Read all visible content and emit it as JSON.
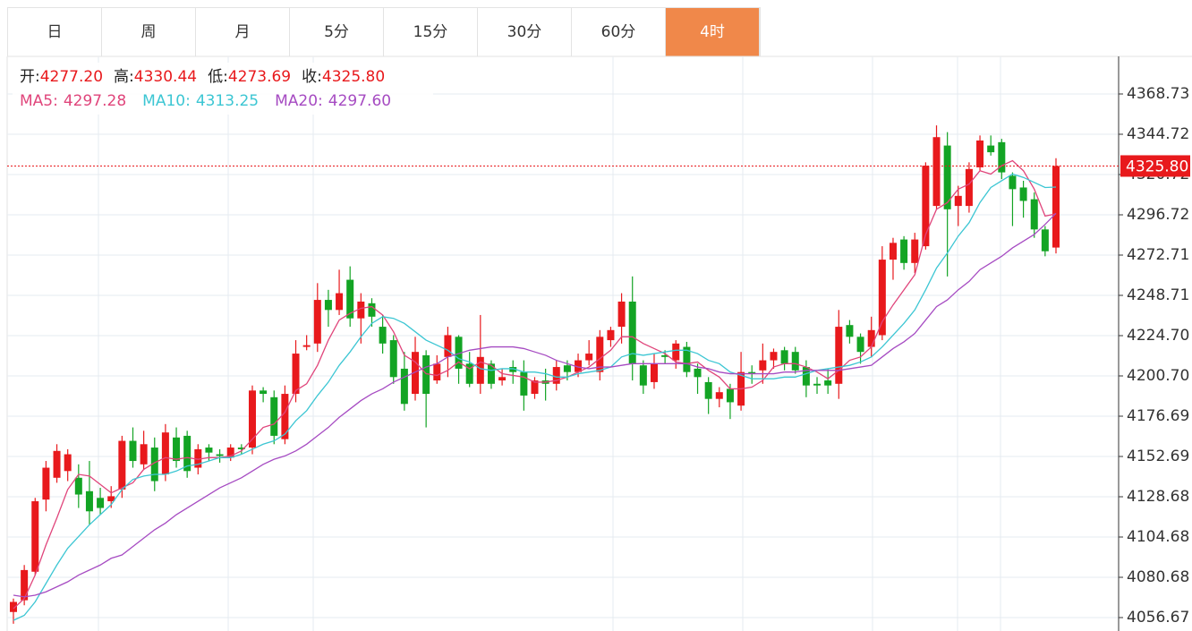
{
  "tabs": [
    "日",
    "周",
    "月",
    "5分",
    "15分",
    "30分",
    "60分",
    "4时"
  ],
  "active_tab": 7,
  "chart_data": {
    "type": "candlestick",
    "info": [
      {
        "label": "开:",
        "value": "4277.20"
      },
      {
        "label": "高:",
        "value": "4330.44"
      },
      {
        "label": "低:",
        "value": "4273.69"
      },
      {
        "label": "收:",
        "value": "4325.80"
      }
    ],
    "price_line": {
      "value": 4325.8,
      "label": "4325.80"
    },
    "up_color": "#e8191c",
    "down_color": "#13a424",
    "ylim": [
      4048.67,
      4391.13
    ],
    "yticks": [
      {
        "value": 4056.67,
        "label": "4056.67"
      },
      {
        "value": 4080.68,
        "label": "4080.68"
      },
      {
        "value": 4104.68,
        "label": "4104.68"
      },
      {
        "value": 4128.68,
        "label": "4128.68"
      },
      {
        "value": 4152.69,
        "label": "4152.69"
      },
      {
        "value": 4176.69,
        "label": "4176.69"
      },
      {
        "value": 4200.7,
        "label": "4200.70"
      },
      {
        "value": 4224.7,
        "label": "4224.70"
      },
      {
        "value": 4248.71,
        "label": "4248.71"
      },
      {
        "value": 4272.71,
        "label": "4272.71"
      },
      {
        "value": 4296.72,
        "label": "4296.72"
      },
      {
        "value": 4320.72,
        "label": "4320.72"
      },
      {
        "value": 4344.72,
        "label": "4344.72"
      },
      {
        "value": 4368.73,
        "label": "4368.73"
      }
    ],
    "grid": true,
    "open": [
      4060,
      4067,
      4084,
      4127,
      4140,
      4144,
      4140,
      4132,
      4128,
      4126,
      4133,
      4162,
      4148,
      4158,
      4142,
      4164,
      4165,
      4146,
      4158,
      4154,
      4152,
      4158,
      4158,
      4192,
      4188,
      4163,
      4190,
      4218,
      4220,
      4246,
      4240,
      4258,
      4235,
      4244,
      4230,
      4222,
      4205,
      4190,
      4213,
      4198,
      4212,
      4224,
      4208,
      4196,
      4208,
      4198,
      4206,
      4203,
      4190,
      4198,
      4196,
      4207,
      4203,
      4210,
      4203,
      4222,
      4230,
      4245,
      4207,
      4197,
      4213,
      4210,
      4218,
      4205,
      4197,
      4187,
      4193,
      4183,
      4203,
      4204,
      4210,
      4216,
      4215,
      4206,
      4196,
      4198,
      4196,
      4231,
      4224,
      4218,
      4225,
      4270,
      4282,
      4268,
      4278,
      4302,
      4338,
      4302,
      4302,
      4325,
      4338,
      4340,
      4320,
      4313,
      4306,
      4288,
      4277.2
    ],
    "high": [
      4068,
      4088,
      4128,
      4150,
      4160,
      4157,
      4148,
      4150,
      4134,
      4135,
      4165,
      4170,
      4168,
      4164,
      4172,
      4170,
      4168,
      4160,
      4160,
      4157,
      4160,
      4160,
      4195,
      4194,
      4192,
      4195,
      4222,
      4225,
      4256,
      4252,
      4264,
      4266,
      4250,
      4247,
      4237,
      4225,
      4215,
      4224,
      4216,
      4213,
      4230,
      4225,
      4215,
      4237,
      4210,
      4205,
      4210,
      4210,
      4200,
      4205,
      4210,
      4210,
      4214,
      4222,
      4228,
      4230,
      4250,
      4260,
      4210,
      4214,
      4216,
      4222,
      4221,
      4208,
      4200,
      4194,
      4196,
      4215,
      4207,
      4220,
      4217,
      4218,
      4218,
      4210,
      4200,
      4205,
      4240,
      4234,
      4226,
      4236,
      4278,
      4283,
      4284,
      4286,
      4328,
      4350,
      4346,
      4314,
      4328,
      4344,
      4344,
      4342,
      4322,
      4317,
      4310,
      4290,
      4330.44
    ],
    "low": [
      4053,
      4064,
      4082,
      4120,
      4137,
      4138,
      4122,
      4112,
      4118,
      4122,
      4128,
      4146,
      4145,
      4132,
      4138,
      4146,
      4140,
      4142,
      4150,
      4149,
      4150,
      4154,
      4154,
      4185,
      4160,
      4160,
      4185,
      4216,
      4215,
      4230,
      4237,
      4230,
      4220,
      4230,
      4214,
      4196,
      4180,
      4186,
      4170,
      4196,
      4200,
      4196,
      4194,
      4190,
      4193,
      4195,
      4196,
      4180,
      4187,
      4186,
      4192,
      4198,
      4200,
      4207,
      4198,
      4218,
      4220,
      4198,
      4190,
      4193,
      4208,
      4205,
      4200,
      4190,
      4178,
      4182,
      4175,
      4180,
      4196,
      4196,
      4205,
      4204,
      4202,
      4188,
      4190,
      4190,
      4187,
      4220,
      4208,
      4212,
      4222,
      4258,
      4264,
      4262,
      4276,
      4300,
      4260,
      4290,
      4298,
      4323,
      4332,
      4318,
      4290,
      4295,
      4283,
      4272,
      4273.69
    ],
    "close": [
      4066,
      4085,
      4126,
      4146,
      4156,
      4154,
      4130,
      4120,
      4122,
      4129,
      4162,
      4150,
      4160,
      4138,
      4167,
      4150,
      4144,
      4157,
      4155,
      4153,
      4158,
      4157,
      4192,
      4190,
      4165,
      4190,
      4214,
      4219,
      4246,
      4240,
      4250,
      4235,
      4245,
      4236,
      4220,
      4200,
      4184,
      4215,
      4190,
      4208,
      4225,
      4205,
      4196,
      4212,
      4196,
      4200,
      4203,
      4189,
      4198,
      4196,
      4206,
      4203,
      4210,
      4214,
      4224,
      4228,
      4245,
      4208,
      4195,
      4208,
      4212,
      4220,
      4203,
      4200,
      4187,
      4191,
      4185,
      4203,
      4202,
      4210,
      4215,
      4208,
      4204,
      4195,
      4195,
      4195,
      4230,
      4224,
      4215,
      4228,
      4270,
      4280,
      4268,
      4282,
      4326,
      4343,
      4300,
      4308,
      4324,
      4341,
      4334,
      4322,
      4312,
      4305,
      4288,
      4275,
      4325.8
    ],
    "series": [
      {
        "name": "MA5:",
        "value_label": "4297.28",
        "color": "#e0457b",
        "values": [
          4062,
          4068,
          4082,
          4100,
          4116,
          4133,
          4142,
          4141,
          4136,
          4131,
          4134,
          4137,
          4145,
          4149,
          4152,
          4151,
          4152,
          4151,
          4152,
          4152,
          4153,
          4156,
          4163,
          4170,
          4172,
          4179,
          4192,
          4196,
          4207,
          4222,
          4234,
          4238,
          4241,
          4242,
          4237,
          4227,
          4213,
          4209,
          4202,
          4201,
          4204,
          4209,
          4205,
          4209,
          4207,
          4202,
          4201,
          4200,
          4197,
          4197,
          4198,
          4200,
          4203,
          4206,
          4211,
          4216,
          4224,
          4224,
          4220,
          4217,
          4214,
          4209,
          4208,
          4209,
          4204,
          4200,
          4193,
          4193,
          4194,
          4198,
          4206,
          4208,
          4208,
          4206,
          4203,
          4199,
          4204,
          4210,
          4212,
          4218,
          4233,
          4243,
          4252,
          4261,
          4285,
          4300,
          4304,
          4312,
          4315,
          4323,
          4321,
          4326,
          4329,
          4323,
          4312,
          4296,
          4297.28
        ]
      },
      {
        "name": "MA10:",
        "value_label": "4313.25",
        "color": "#3cc6d3",
        "values": [
          4055,
          4058,
          4066,
          4077,
          4088,
          4098,
          4105,
          4112,
          4118,
          4124,
          4133,
          4139,
          4141,
          4142,
          4142,
          4144,
          4147,
          4148,
          4150,
          4152,
          4152,
          4154,
          4157,
          4160,
          4162,
          4166,
          4174,
          4180,
          4189,
          4197,
          4207,
          4215,
          4224,
          4232,
          4236,
          4235,
          4232,
          4227,
          4222,
          4219,
          4216,
          4211,
          4209,
          4205,
          4204,
          4205,
          4205,
          4203,
          4203,
          4202,
          4200,
          4200,
          4202,
          4203,
          4204,
          4206,
          4212,
          4214,
          4213,
          4214,
          4215,
          4216,
          4216,
          4214,
          4210,
          4208,
          4203,
          4201,
          4199,
          4199,
          4199,
          4200,
          4200,
          4202,
          4204,
          4205,
          4206,
          4207,
          4209,
          4212,
          4218,
          4225,
          4232,
          4240,
          4252,
          4265,
          4274,
          4284,
          4292,
          4304,
          4313,
          4317,
          4321,
          4319,
          4316,
          4313,
          4313.25
        ]
      },
      {
        "name": "MA20:",
        "value_label": "4297.60",
        "color": "#a64bc2",
        "values": [
          4070,
          4069,
          4070,
          4072,
          4075,
          4078,
          4082,
          4085,
          4088,
          4092,
          4094,
          4099,
          4104,
          4109,
          4113,
          4118,
          4122,
          4126,
          4130,
          4134,
          4137,
          4140,
          4144,
          4148,
          4151,
          4153,
          4156,
          4160,
          4165,
          4170,
          4176,
          4181,
          4186,
          4190,
          4193,
          4197,
          4200,
          4203,
          4206,
          4208,
          4212,
          4214,
          4216,
          4217,
          4218,
          4218,
          4218,
          4217,
          4215,
          4213,
          4210,
          4208,
          4206,
          4205,
          4206,
          4206,
          4207,
          4208,
          4208,
          4208,
          4208,
          4208,
          4208,
          4206,
          4205,
          4203,
          4202,
          4202,
          4202,
          4202,
          4202,
          4203,
          4203,
          4204,
          4204,
          4204,
          4204,
          4205,
          4206,
          4207,
          4212,
          4217,
          4221,
          4226,
          4234,
          4242,
          4246,
          4252,
          4257,
          4264,
          4268,
          4272,
          4277,
          4281,
          4285,
          4291,
          4297.6
        ]
      }
    ]
  }
}
